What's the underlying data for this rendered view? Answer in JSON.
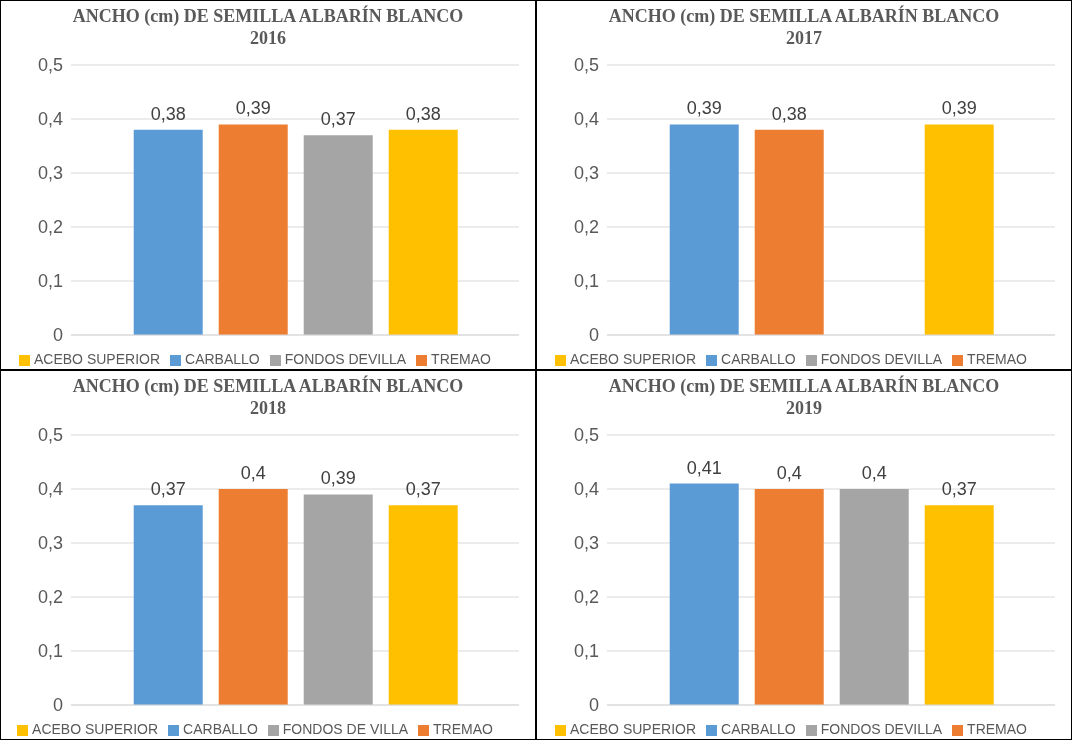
{
  "chart_data": [
    {
      "type": "bar",
      "title": "ANCHO (cm) DE SEMILLA ALBARÍN BLANCO 2016",
      "categories": [
        null
      ],
      "ylim": [
        0,
        0.5
      ],
      "yticks": [
        {
          "value": 0,
          "label": "0"
        },
        {
          "value": 0.1,
          "label": "0,1"
        },
        {
          "value": 0.2,
          "label": "0,2"
        },
        {
          "value": 0.3,
          "label": "0,3"
        },
        {
          "value": 0.4,
          "label": "0,4"
        },
        {
          "value": 0.5,
          "label": "0,5"
        }
      ],
      "grid": "y",
      "legend": "bottom",
      "series": [
        {
          "name": "CARBALLO",
          "color": "#5b9bd5",
          "values": [
            0.38
          ],
          "value_labels": [
            "0,38"
          ]
        },
        {
          "name": "TREMAO",
          "color": "#ed7d31",
          "values": [
            0.39
          ],
          "value_labels": [
            "0,39"
          ]
        },
        {
          "name": "FONDOS DEVILLA",
          "color": "#a5a5a5",
          "values": [
            0.37
          ],
          "value_labels": [
            "0,37"
          ]
        },
        {
          "name": "ACEBO SUPERIOR",
          "color": "#ffc000",
          "values": [
            0.38
          ],
          "value_labels": [
            "0,38"
          ]
        }
      ]
    },
    {
      "type": "bar",
      "title": "ANCHO (cm) DE SEMILLA ALBARÍN BLANCO 2017",
      "categories": [
        null
      ],
      "ylim": [
        0,
        0.5
      ],
      "yticks": [
        {
          "value": 0,
          "label": "0"
        },
        {
          "value": 0.1,
          "label": "0,1"
        },
        {
          "value": 0.2,
          "label": "0,2"
        },
        {
          "value": 0.3,
          "label": "0,3"
        },
        {
          "value": 0.4,
          "label": "0,4"
        },
        {
          "value": 0.5,
          "label": "0,5"
        }
      ],
      "grid": "y",
      "legend": "bottom",
      "series": [
        {
          "name": "CARBALLO",
          "color": "#5b9bd5",
          "values": [
            0.39
          ],
          "value_labels": [
            "0,39"
          ]
        },
        {
          "name": "TREMAO",
          "color": "#ed7d31",
          "values": [
            0.38
          ],
          "value_labels": [
            "0,38"
          ]
        },
        {
          "name": "FONDOS DEVILLA",
          "color": "#a5a5a5",
          "values": [
            null
          ],
          "value_labels": [
            null
          ]
        },
        {
          "name": "ACEBO SUPERIOR",
          "color": "#ffc000",
          "values": [
            0.39
          ],
          "value_labels": [
            "0,39"
          ]
        }
      ]
    },
    {
      "type": "bar",
      "title": "ANCHO (cm) DE SEMILLA ALBARÍN BLANCO 2018",
      "categories": [
        null
      ],
      "ylim": [
        0,
        0.5
      ],
      "yticks": [
        {
          "value": 0,
          "label": "0"
        },
        {
          "value": 0.1,
          "label": "0,1"
        },
        {
          "value": 0.2,
          "label": "0,2"
        },
        {
          "value": 0.3,
          "label": "0,3"
        },
        {
          "value": 0.4,
          "label": "0,4"
        },
        {
          "value": 0.5,
          "label": "0,5"
        }
      ],
      "grid": "y",
      "legend": "bottom",
      "series": [
        {
          "name": "CARBALLO",
          "color": "#5b9bd5",
          "values": [
            0.37
          ],
          "value_labels": [
            "0,37"
          ]
        },
        {
          "name": "TREMAO",
          "color": "#ed7d31",
          "values": [
            0.4
          ],
          "value_labels": [
            "0,4"
          ]
        },
        {
          "name": "FONDOS DE VILLA",
          "color": "#a5a5a5",
          "values": [
            0.39
          ],
          "value_labels": [
            "0,39"
          ]
        },
        {
          "name": "ACEBO SUPERIOR",
          "color": "#ffc000",
          "values": [
            0.37
          ],
          "value_labels": [
            "0,37"
          ]
        }
      ]
    },
    {
      "type": "bar",
      "title": "ANCHO (cm) DE SEMILLA ALBARÍN BLANCO 2019",
      "categories": [
        null
      ],
      "ylim": [
        0,
        0.5
      ],
      "yticks": [
        {
          "value": 0,
          "label": "0"
        },
        {
          "value": 0.1,
          "label": "0,1"
        },
        {
          "value": 0.2,
          "label": "0,2"
        },
        {
          "value": 0.3,
          "label": "0,3"
        },
        {
          "value": 0.4,
          "label": "0,4"
        },
        {
          "value": 0.5,
          "label": "0,5"
        }
      ],
      "grid": "y",
      "legend": "bottom",
      "series": [
        {
          "name": "CARBALLO",
          "color": "#5b9bd5",
          "values": [
            0.41
          ],
          "value_labels": [
            "0,41"
          ]
        },
        {
          "name": "TREMAO",
          "color": "#ed7d31",
          "values": [
            0.4
          ],
          "value_labels": [
            "0,4"
          ]
        },
        {
          "name": "FONDOS DEVILLA",
          "color": "#a5a5a5",
          "values": [
            0.4
          ],
          "value_labels": [
            "0,4"
          ]
        },
        {
          "name": "ACEBO SUPERIOR",
          "color": "#ffc000",
          "values": [
            0.37
          ],
          "value_labels": [
            "0,37"
          ]
        }
      ]
    }
  ]
}
